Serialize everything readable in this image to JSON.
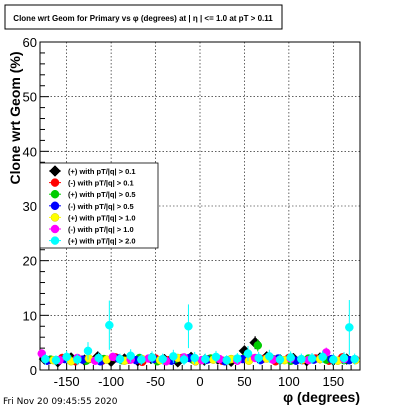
{
  "footer": {
    "timestamp": "Fri Nov 20 09:45:55 2020"
  },
  "chart_data": {
    "type": "scatter",
    "title": "Clone wrt Geom for Primary vs φ (degrees) at | η | <= 1.0 at pT > 0.11",
    "xlabel": "φ (degrees)",
    "ylabel": "Clone wrt Geom (%)",
    "xlim": [
      -180,
      180
    ],
    "ylim": [
      0,
      60
    ],
    "xticks": [
      -150,
      -100,
      -50,
      0,
      50,
      100,
      150
    ],
    "yticks": [
      0,
      10,
      20,
      30,
      40,
      50,
      60
    ],
    "grid": true,
    "legend_position": "left-middle",
    "series": [
      {
        "name": "(+) with pT/|q| > 0.1",
        "color": "#000000",
        "x": [
          -175,
          -160,
          -145,
          -130,
          -115,
          -100,
          -85,
          -70,
          -55,
          -40,
          -25,
          -10,
          5,
          20,
          35,
          50,
          62,
          75,
          90,
          105,
          120,
          135,
          150,
          165
        ],
        "y": [
          2.0,
          1.5,
          2.2,
          1.8,
          2.4,
          1.6,
          2.0,
          1.7,
          2.1,
          1.9,
          1.5,
          2.3,
          1.8,
          2.0,
          1.6,
          3.5,
          5.0,
          2.4,
          1.9,
          2.1,
          1.7,
          2.2,
          1.8,
          2.0
        ],
        "err": [
          0.6,
          0.5,
          0.7,
          0.6,
          0.7,
          0.5,
          0.6,
          0.5,
          0.6,
          0.6,
          0.5,
          0.7,
          0.6,
          0.6,
          0.5,
          0.9,
          1.2,
          0.7,
          0.6,
          0.6,
          0.5,
          0.7,
          0.6,
          0.6
        ]
      },
      {
        "name": "(-) with pT/|q| > 0.1",
        "color": "#ff0000",
        "x": [
          -170,
          -155,
          -140,
          -125,
          -110,
          -95,
          -80,
          -65,
          -50,
          -35,
          -20,
          -5,
          10,
          25,
          40,
          55,
          70,
          85,
          100,
          115,
          130,
          145,
          160,
          175
        ],
        "y": [
          1.8,
          2.2,
          1.6,
          2.0,
          1.7,
          2.3,
          1.9,
          1.5,
          2.1,
          1.8,
          2.2,
          1.6,
          2.0,
          1.7,
          1.9,
          2.4,
          2.0,
          1.6,
          2.2,
          1.8,
          2.1,
          1.7,
          2.3,
          1.9
        ],
        "err": [
          0.6,
          0.6,
          0.5,
          0.6,
          0.5,
          0.7,
          0.6,
          0.5,
          0.6,
          0.6,
          0.7,
          0.5,
          0.6,
          0.5,
          0.6,
          0.7,
          0.6,
          0.5,
          0.6,
          0.6,
          0.6,
          0.5,
          0.7,
          0.6
        ]
      },
      {
        "name": "(+) with pT/|q| > 0.5",
        "color": "#00cc00",
        "x": [
          -168,
          -148,
          -128,
          -108,
          -88,
          -68,
          -48,
          -28,
          -8,
          12,
          32,
          52,
          65,
          82,
          102,
          122,
          142,
          162
        ],
        "y": [
          1.9,
          2.1,
          1.7,
          2.0,
          1.8,
          2.2,
          1.6,
          2.0,
          1.9,
          2.1,
          1.8,
          2.5,
          4.5,
          2.0,
          1.7,
          2.1,
          1.9,
          1.8
        ],
        "err": [
          0.6,
          0.6,
          0.5,
          0.6,
          0.6,
          0.7,
          0.5,
          0.6,
          0.6,
          0.6,
          0.6,
          0.8,
          1.1,
          0.6,
          0.5,
          0.6,
          0.6,
          0.6
        ]
      },
      {
        "name": "(-) with pT/|q| > 0.5",
        "color": "#0000ff",
        "x": [
          -172,
          -152,
          -132,
          -112,
          -92,
          -72,
          -52,
          -32,
          -12,
          8,
          28,
          48,
          68,
          88,
          108,
          128,
          148,
          168
        ],
        "y": [
          1.7,
          2.0,
          1.9,
          1.6,
          2.1,
          1.8,
          2.0,
          1.7,
          2.2,
          1.9,
          1.6,
          2.0,
          1.8,
          2.1,
          1.7,
          1.9,
          2.0,
          1.8
        ],
        "err": [
          0.5,
          0.6,
          0.6,
          0.5,
          0.6,
          0.6,
          0.6,
          0.5,
          0.7,
          0.6,
          0.5,
          0.6,
          0.6,
          0.6,
          0.5,
          0.6,
          0.6,
          0.6
        ]
      },
      {
        "name": "(+) with pT/|q| > 1.0",
        "color": "#ffff00",
        "x": [
          -165,
          -145,
          -125,
          -105,
          -85,
          -65,
          -45,
          -25,
          -5,
          15,
          35,
          55,
          75,
          95,
          115,
          135,
          155,
          175
        ],
        "y": [
          1.8,
          1.6,
          2.1,
          1.9,
          1.7,
          2.0,
          1.8,
          2.2,
          1.6,
          1.9,
          2.0,
          1.7,
          2.1,
          1.8,
          1.9,
          2.0,
          1.7,
          1.8
        ],
        "err": [
          0.6,
          0.5,
          0.6,
          0.6,
          0.5,
          0.6,
          0.6,
          0.7,
          0.5,
          0.6,
          0.6,
          0.5,
          0.6,
          0.6,
          0.6,
          0.6,
          0.5,
          0.6
        ]
      },
      {
        "name": "(-) with pT/|q| > 1.0",
        "color": "#ff00ff",
        "x": [
          -178,
          -158,
          -138,
          -118,
          -98,
          -78,
          -58,
          -38,
          -18,
          2,
          22,
          42,
          62,
          82,
          102,
          122,
          142,
          162
        ],
        "y": [
          3.0,
          1.8,
          2.2,
          1.7,
          2.4,
          1.9,
          2.1,
          1.6,
          2.3,
          1.8,
          2.0,
          1.7,
          2.2,
          1.9,
          2.1,
          1.8,
          3.2,
          2.0
        ],
        "err": [
          0.8,
          0.6,
          0.7,
          0.5,
          0.7,
          0.6,
          0.6,
          0.5,
          0.7,
          0.6,
          0.6,
          0.5,
          0.7,
          0.6,
          0.6,
          0.6,
          0.9,
          0.6
        ]
      },
      {
        "name": "(+) with pT/|q| > 2.0",
        "color": "#00ffff",
        "x": [
          -174,
          -162,
          -150,
          -138,
          -126,
          -114,
          -102,
          -90,
          -78,
          -66,
          -54,
          -42,
          -30,
          -18,
          -13,
          -6,
          6,
          18,
          30,
          42,
          54,
          66,
          78,
          90,
          102,
          114,
          126,
          138,
          150,
          162,
          168,
          174
        ],
        "y": [
          2.0,
          1.8,
          2.4,
          1.9,
          3.5,
          2.2,
          8.2,
          2.0,
          2.6,
          1.9,
          2.3,
          2.0,
          2.5,
          1.9,
          8.0,
          2.2,
          2.0,
          2.4,
          1.8,
          2.1,
          3.0,
          2.2,
          2.5,
          1.9,
          2.3,
          2.0,
          2.1,
          2.4,
          1.9,
          2.2,
          7.8,
          2.0
        ],
        "err": [
          1.0,
          0.9,
          1.1,
          1.0,
          1.6,
          1.0,
          4.5,
          1.0,
          1.2,
          1.0,
          1.1,
          1.0,
          1.2,
          1.0,
          4.0,
          1.1,
          1.0,
          1.1,
          0.9,
          1.0,
          1.4,
          1.1,
          1.2,
          1.0,
          1.1,
          1.0,
          1.0,
          1.1,
          1.0,
          1.1,
          5.0,
          1.0
        ]
      }
    ]
  }
}
